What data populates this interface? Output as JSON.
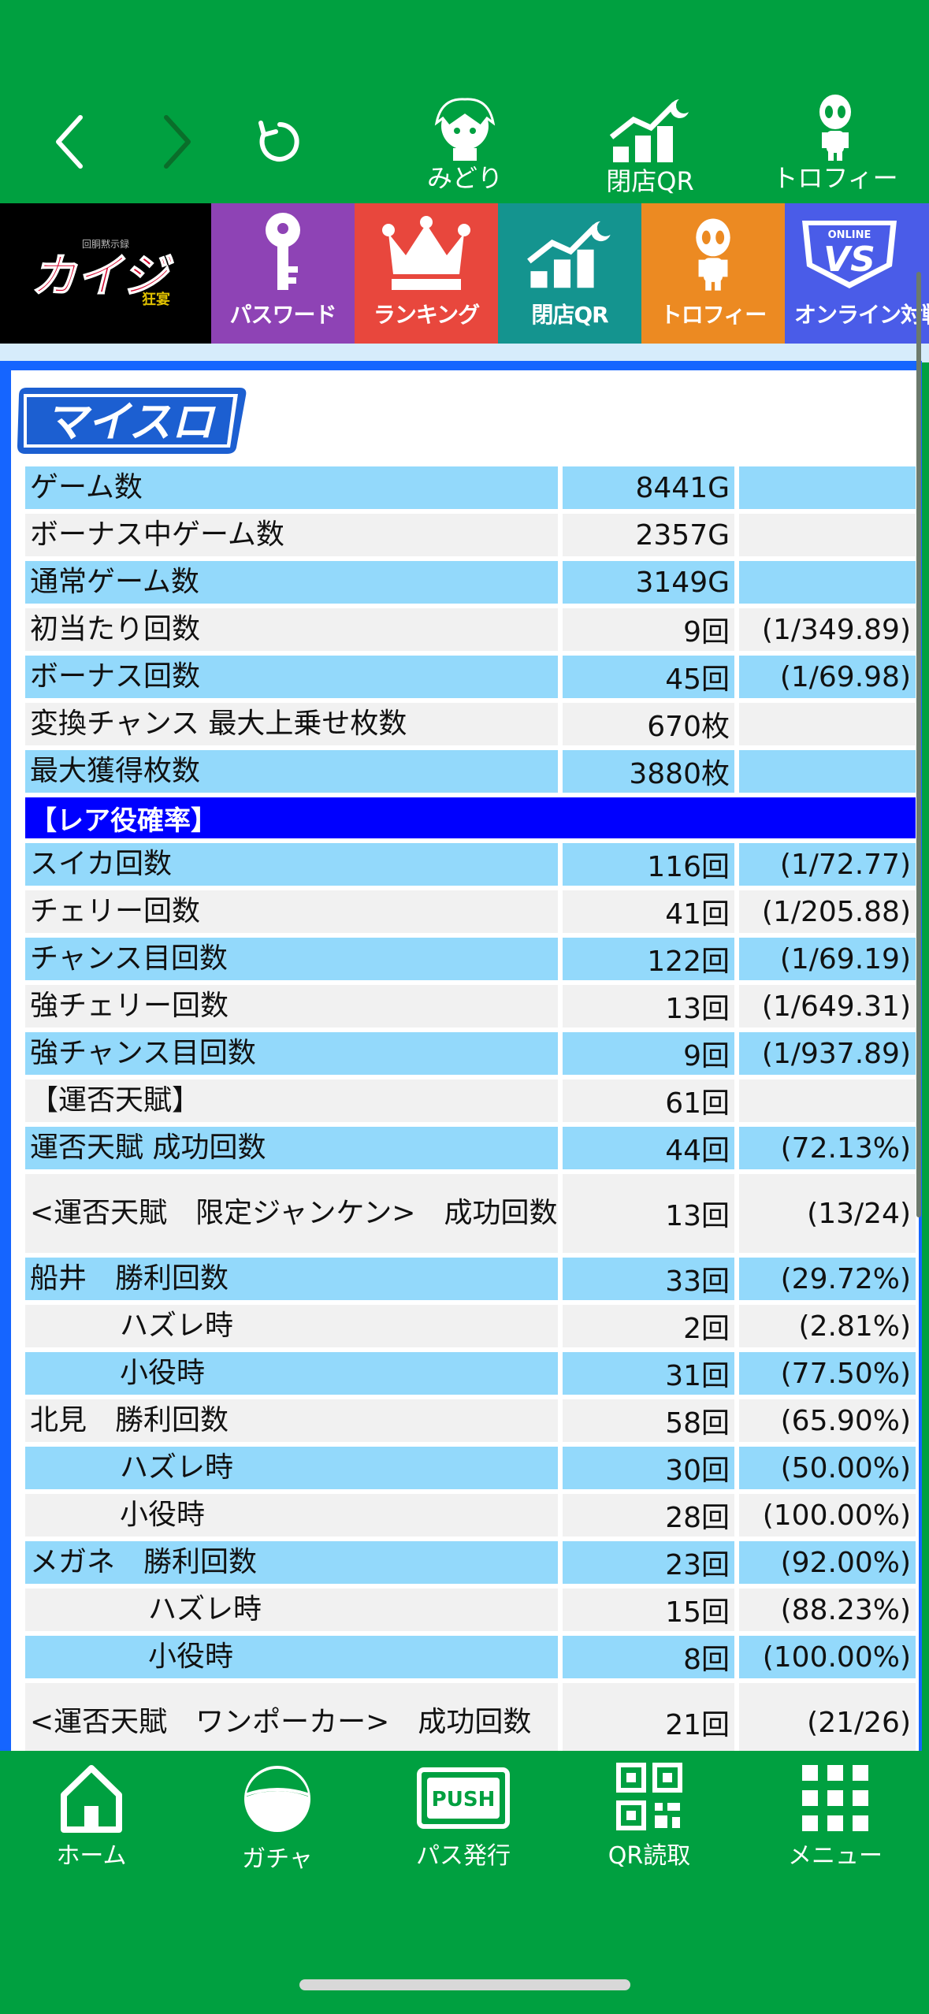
{
  "topnav": {
    "midori_label": "みどり",
    "closing_qr_label": "閉店QR",
    "trophy_label": "トロフィー"
  },
  "menu": {
    "game_logo_text": "カイジ",
    "password_label": "パスワード",
    "ranking_label": "ランキング",
    "closing_qr_label": "閉店QR",
    "trophy_label": "トロフィー",
    "online_label": "オンライン対戦",
    "vs_text": "VS",
    "online_badge": "ONLINE"
  },
  "logo_text": "マイスロ",
  "stats": {
    "rows": [
      {
        "label": "ゲーム数",
        "value": "8441G",
        "ratio": ""
      },
      {
        "label": "ボーナス中ゲーム数",
        "value": "2357G",
        "ratio": ""
      },
      {
        "label": "通常ゲーム数",
        "value": "3149G",
        "ratio": ""
      },
      {
        "label": "初当たり回数",
        "value": "9回",
        "ratio": "(1/349.89)"
      },
      {
        "label": "ボーナス回数",
        "value": "45回",
        "ratio": "(1/69.98)"
      },
      {
        "label": "変換チャンス 最大上乗せ枚数",
        "value": "670枚",
        "ratio": ""
      },
      {
        "label": "最大獲得枚数",
        "value": "3880枚",
        "ratio": ""
      }
    ],
    "rare_header": "【レア役確率】",
    "rare_rows": [
      {
        "label": "スイカ回数",
        "value": "116回",
        "ratio": "(1/72.77)"
      },
      {
        "label": "チェリー回数",
        "value": "41回",
        "ratio": "(1/205.88)"
      },
      {
        "label": "チャンス目回数",
        "value": "122回",
        "ratio": "(1/69.19)"
      },
      {
        "label": "強チェリー回数",
        "value": "13回",
        "ratio": "(1/649.31)"
      },
      {
        "label": "強チャンス目回数",
        "value": "9回",
        "ratio": "(1/937.89)"
      },
      {
        "label": "【運否天賦】",
        "value": "61回",
        "ratio": ""
      },
      {
        "label": "運否天賦 成功回数",
        "value": "44回",
        "ratio": "(72.13%)"
      },
      {
        "label": "<運否天賦　限定ジャンケン>　成功回数",
        "value": "13回",
        "ratio": "(13/24)"
      },
      {
        "label": "船井　勝利回数",
        "value": "33回",
        "ratio": "(29.72%)"
      },
      {
        "label": "ハズレ時",
        "value": "2回",
        "ratio": "(2.81%)"
      },
      {
        "label": "小役時",
        "value": "31回",
        "ratio": "(77.50%)"
      },
      {
        "label": "北見　勝利回数",
        "value": "58回",
        "ratio": "(65.90%)"
      },
      {
        "label": "ハズレ時",
        "value": "30回",
        "ratio": "(50.00%)"
      },
      {
        "label": "小役時",
        "value": "28回",
        "ratio": "(100.00%)"
      },
      {
        "label": "メガネ　勝利回数",
        "value": "23回",
        "ratio": "(92.00%)"
      },
      {
        "label": "ハズレ時",
        "value": "15回",
        "ratio": "(88.23%)"
      },
      {
        "label": "小役時",
        "value": "8回",
        "ratio": "(100.00%)"
      },
      {
        "label": "<運否天賦　ワンポーカー>　成功回数",
        "value": "21回",
        "ratio": "(21/26)"
      }
    ]
  },
  "bottomnav": {
    "home_label": "ホーム",
    "gacha_label": "ガチャ",
    "pass_label": "パス発行",
    "push_text": "PUSH",
    "qr_label": "QR読取",
    "menu_label": "メニュー"
  }
}
